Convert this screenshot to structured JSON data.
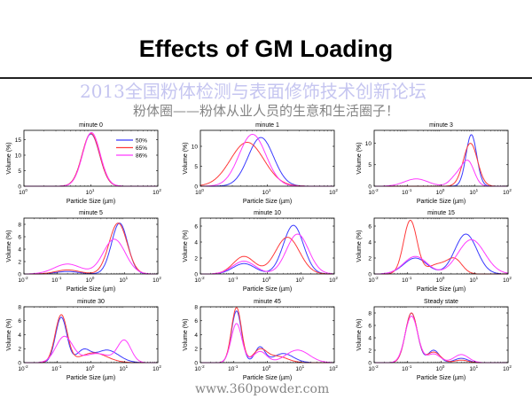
{
  "title": "Effects of GM Loading",
  "watermarks": {
    "diagonal": "2013全国粉体检测与表面修饰技术创新论坛",
    "line1": "粉体圈——粉体从业人员的生意和生活圈子！",
    "line2": "www.360powder.com"
  },
  "colors": {
    "50%": "#3a3aff",
    "65%": "#ff3a3a",
    "86%": "#ff3aff"
  },
  "chart_data": [
    {
      "type": "line",
      "title": "minute 0",
      "xlabel": "Particle Size (µm)",
      "ylabel": "Volume (%)",
      "xscale": "log",
      "xlim": [
        1,
        100
      ],
      "ylim": [
        0,
        18
      ],
      "yticks": [
        0,
        5,
        10,
        15
      ],
      "legend": {
        "placement": "top-right",
        "entries": [
          "50%",
          "65%",
          "86%"
        ]
      },
      "series": [
        {
          "name": "50%",
          "peaks": [
            [
              10,
              16.8,
              0.13
            ]
          ]
        },
        {
          "name": "65%",
          "peaks": [
            [
              10,
              17,
              0.13
            ]
          ]
        },
        {
          "name": "86%",
          "peaks": [
            [
              10.2,
              17.3,
              0.13
            ]
          ]
        }
      ]
    },
    {
      "type": "line",
      "title": "minute 1",
      "xlabel": "Particle Size (µm)",
      "ylabel": "Volume (%)",
      "xscale": "log",
      "xlim": [
        1,
        100
      ],
      "ylim": [
        0,
        14
      ],
      "yticks": [
        0,
        5,
        10
      ],
      "series": [
        {
          "name": "50%",
          "peaks": [
            [
              8,
              12.2,
              0.19
            ]
          ]
        },
        {
          "name": "65%",
          "peaks": [
            [
              5,
              11,
              0.25
            ]
          ]
        },
        {
          "name": "86%",
          "peaks": [
            [
              6,
              13,
              0.2
            ]
          ]
        }
      ]
    },
    {
      "type": "line",
      "title": "minute 3",
      "xlabel": "Particle Size (µm)",
      "ylabel": "Volume (%)",
      "xscale": "log",
      "xlim": [
        0.01,
        100
      ],
      "ylim": [
        0,
        13
      ],
      "yticks": [
        0,
        5,
        10
      ],
      "series": [
        {
          "name": "50%",
          "peaks": [
            [
              8,
              12,
              0.16
            ]
          ]
        },
        {
          "name": "65%",
          "peaks": [
            [
              7.5,
              10,
              0.21
            ]
          ]
        },
        {
          "name": "86%",
          "peaks": [
            [
              0.18,
              1.7,
              0.35
            ],
            [
              3,
              2.4,
              0.2
            ],
            [
              6.5,
              5.4,
              0.18
            ]
          ]
        }
      ]
    },
    {
      "type": "line",
      "title": "minute 5",
      "xlabel": "Particle Size (µm)",
      "ylabel": "Volume (%)",
      "xscale": "log",
      "xlim": [
        0.01,
        100
      ],
      "ylim": [
        0,
        9
      ],
      "yticks": [
        0,
        2,
        4,
        6,
        8
      ],
      "series": [
        {
          "name": "50%",
          "peaks": [
            [
              0.2,
              0.4,
              0.35
            ],
            [
              7.2,
              8.2,
              0.24
            ]
          ]
        },
        {
          "name": "65%",
          "peaks": [
            [
              0.2,
              0.65,
              0.35
            ],
            [
              6.5,
              8.2,
              0.27
            ]
          ]
        },
        {
          "name": "86%",
          "peaks": [
            [
              0.2,
              1.6,
              0.4
            ],
            [
              5,
              5.6,
              0.33
            ]
          ]
        }
      ]
    },
    {
      "type": "line",
      "title": "minute 10",
      "xlabel": "Particle Size (µm)",
      "ylabel": "Volume (%)",
      "xscale": "log",
      "xlim": [
        0.01,
        100
      ],
      "ylim": [
        0,
        7
      ],
      "yticks": [
        0,
        2,
        4,
        6
      ],
      "series": [
        {
          "name": "50%",
          "peaks": [
            [
              0.2,
              1.3,
              0.33
            ],
            [
              6,
              6.1,
              0.3
            ]
          ]
        },
        {
          "name": "65%",
          "peaks": [
            [
              0.2,
              2.2,
              0.32
            ],
            [
              4,
              4.6,
              0.36
            ]
          ]
        },
        {
          "name": "86%",
          "peaks": [
            [
              0.2,
              1.6,
              0.34
            ],
            [
              8,
              5,
              0.33
            ]
          ]
        }
      ]
    },
    {
      "type": "line",
      "title": "minute 15",
      "xlabel": "Particle Size (µm)",
      "ylabel": "Volume (%)",
      "xscale": "log",
      "xlim": [
        0.01,
        100
      ],
      "ylim": [
        0,
        7
      ],
      "yticks": [
        0,
        2,
        4,
        6
      ],
      "series": [
        {
          "name": "50%",
          "peaks": [
            [
              0.17,
              2,
              0.35
            ],
            [
              5.5,
              5,
              0.33
            ]
          ]
        },
        {
          "name": "65%",
          "peaks": [
            [
              0.12,
              6.7,
              0.2
            ],
            [
              0.8,
              1.2,
              0.3
            ],
            [
              2.6,
              1.7,
              0.22
            ]
          ]
        },
        {
          "name": "86%",
          "peaks": [
            [
              0.17,
              2.2,
              0.35
            ],
            [
              8,
              4.3,
              0.4
            ]
          ]
        }
      ]
    },
    {
      "type": "line",
      "title": "minute 30",
      "xlabel": "Particle Size (µm)",
      "ylabel": "Volume (%)",
      "xscale": "log",
      "xlim": [
        0.01,
        100
      ],
      "ylim": [
        0,
        8
      ],
      "yticks": [
        0,
        2,
        4,
        6,
        8
      ],
      "series": [
        {
          "name": "50%",
          "peaks": [
            [
              0.13,
              6.5,
              0.17
            ],
            [
              0.6,
              1.7,
              0.2
            ],
            [
              3,
              1.8,
              0.35
            ]
          ]
        },
        {
          "name": "65%",
          "peaks": [
            [
              0.13,
              6.8,
              0.18
            ],
            [
              1.2,
              1.4,
              0.4
            ]
          ]
        },
        {
          "name": "86%",
          "peaks": [
            [
              0.16,
              3.7,
              0.25
            ],
            [
              1.5,
              1.3,
              0.4
            ],
            [
              10,
              3.1,
              0.2
            ]
          ]
        }
      ]
    },
    {
      "type": "line",
      "title": "minute 45",
      "xlabel": "Particle Size (µm)",
      "ylabel": "Volume (%)",
      "xscale": "log",
      "xlim": [
        0.01,
        100
      ],
      "ylim": [
        0,
        8
      ],
      "yticks": [
        0,
        2,
        4,
        6,
        8
      ],
      "series": [
        {
          "name": "50%",
          "peaks": [
            [
              0.12,
              7.4,
              0.15
            ],
            [
              0.6,
              2.2,
              0.15
            ],
            [
              3,
              1.3,
              0.3
            ]
          ]
        },
        {
          "name": "65%",
          "peaks": [
            [
              0.12,
              7.9,
              0.15
            ],
            [
              0.6,
              1.8,
              0.2
            ],
            [
              2,
              0.9,
              0.3
            ]
          ]
        },
        {
          "name": "86%",
          "peaks": [
            [
              0.12,
              5.6,
              0.16
            ],
            [
              0.6,
              1.6,
              0.2
            ],
            [
              8,
              1.8,
              0.35
            ]
          ]
        }
      ]
    },
    {
      "type": "line",
      "title": "Steady state",
      "xlabel": "Particle Size (µm)",
      "ylabel": "Volume (%)",
      "xscale": "log",
      "xlim": [
        0.01,
        100
      ],
      "ylim": [
        0,
        9
      ],
      "yticks": [
        0,
        2,
        4,
        6,
        8
      ],
      "series": [
        {
          "name": "50%",
          "peaks": [
            [
              0.13,
              8,
              0.18
            ],
            [
              0.6,
              2,
              0.17
            ],
            [
              4,
              0.7,
              0.2
            ]
          ]
        },
        {
          "name": "65%",
          "peaks": [
            [
              0.13,
              8,
              0.18
            ],
            [
              0.6,
              1.7,
              0.2
            ],
            [
              4,
              0.4,
              0.2
            ]
          ]
        },
        {
          "name": "86%",
          "peaks": [
            [
              0.13,
              7.5,
              0.19
            ],
            [
              0.6,
              1.4,
              0.2
            ],
            [
              4,
              1.3,
              0.22
            ]
          ]
        }
      ]
    }
  ]
}
